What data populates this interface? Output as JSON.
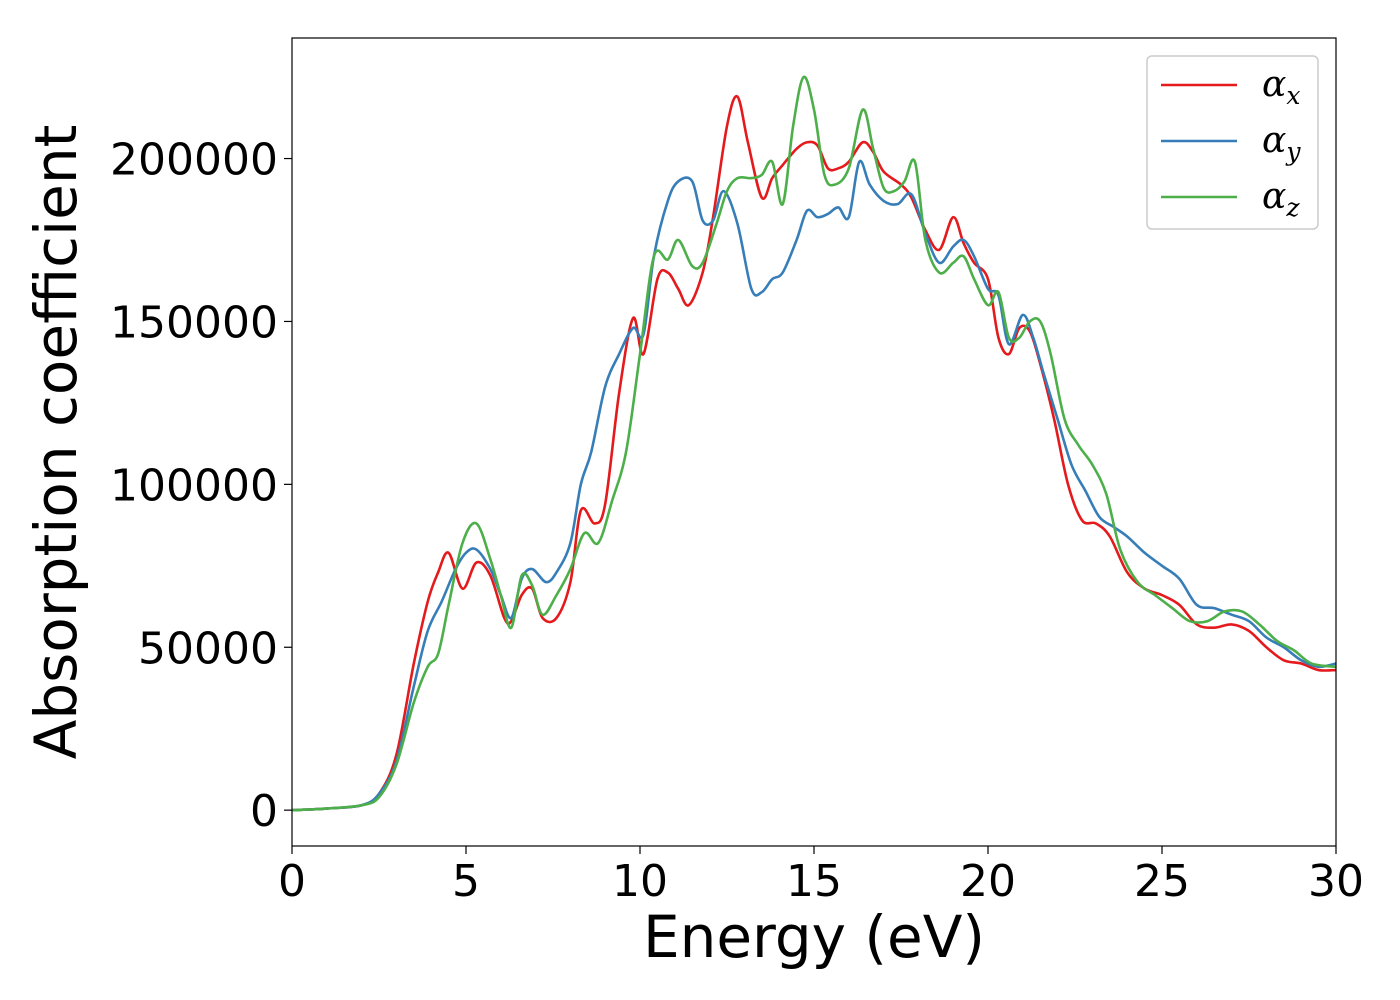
{
  "chart_data": {
    "type": "line",
    "title": "",
    "xlabel": "Energy (eV)",
    "ylabel": "Absorption coefficient",
    "xlim": [
      0,
      30
    ],
    "ylim": [
      -11000,
      237000
    ],
    "xticks": [
      0,
      5,
      10,
      15,
      20,
      25,
      30
    ],
    "xtick_labels": [
      "0",
      "5",
      "10",
      "15",
      "20",
      "25",
      "30"
    ],
    "yticks": [
      0,
      50000,
      100000,
      150000,
      200000
    ],
    "ytick_labels": [
      "0",
      "50000",
      "100000",
      "150000",
      "200000"
    ],
    "grid": false,
    "legend": {
      "placement": "top-right"
    },
    "series": [
      {
        "name": "α_x",
        "symbol": "α",
        "subscript": "x",
        "color": "#e41a1c",
        "x": [
          0,
          1,
          2,
          2.5,
          3,
          3.5,
          3.9,
          4.2,
          4.5,
          4.9,
          5.3,
          5.7,
          6.1,
          6.3,
          6.6,
          6.9,
          7.2,
          7.6,
          8.0,
          8.3,
          8.7,
          9.0,
          9.4,
          9.8,
          10.1,
          10.5,
          10.8,
          11.1,
          11.4,
          11.8,
          12.1,
          12.5,
          12.8,
          13.1,
          13.5,
          13.8,
          14.1,
          14.5,
          14.8,
          15.1,
          15.4,
          15.7,
          16.0,
          16.4,
          16.7,
          17.0,
          17.5,
          17.8,
          18.2,
          18.6,
          19.0,
          19.3,
          19.6,
          20.0,
          20.3,
          20.6,
          20.9,
          21.2,
          21.5,
          21.9,
          22.3,
          22.7,
          23.1,
          23.5,
          24.0,
          24.5,
          25.0,
          25.5,
          26.0,
          26.5,
          27.0,
          27.5,
          28.0,
          28.5,
          29.0,
          29.5,
          30.0
        ],
        "y": [
          0,
          500,
          1500,
          5000,
          17000,
          45000,
          64000,
          73000,
          79000,
          68000,
          76000,
          72000,
          59000,
          58000,
          66000,
          68000,
          59000,
          59000,
          70000,
          92000,
          88000,
          94000,
          128000,
          151000,
          140000,
          163000,
          165000,
          160000,
          155000,
          165000,
          182000,
          210000,
          219000,
          205000,
          188000,
          194000,
          198000,
          203000,
          205000,
          204000,
          197000,
          197000,
          199000,
          205000,
          202000,
          196000,
          192000,
          188000,
          178000,
          172000,
          182000,
          174000,
          168000,
          163000,
          145000,
          140000,
          148000,
          147000,
          137000,
          120000,
          100000,
          89000,
          88000,
          84000,
          73000,
          68000,
          66000,
          63000,
          57000,
          56000,
          57000,
          55000,
          50000,
          46000,
          45000,
          43000,
          43000
        ]
      },
      {
        "name": "α_y",
        "symbol": "α",
        "subscript": "y",
        "color": "#377eb8",
        "x": [
          0,
          1,
          2,
          2.5,
          3,
          3.5,
          3.9,
          4.3,
          4.7,
          5.0,
          5.3,
          5.7,
          6.0,
          6.3,
          6.6,
          6.9,
          7.3,
          7.6,
          8.0,
          8.3,
          8.6,
          9.0,
          9.4,
          9.8,
          10.1,
          10.4,
          10.8,
          11.1,
          11.5,
          11.8,
          12.1,
          12.4,
          12.8,
          13.2,
          13.5,
          13.8,
          14.1,
          14.5,
          14.8,
          15.1,
          15.4,
          15.7,
          16.0,
          16.3,
          16.6,
          17.0,
          17.4,
          17.8,
          18.2,
          18.6,
          19.0,
          19.3,
          19.6,
          20.0,
          20.3,
          20.6,
          21.0,
          21.3,
          21.6,
          22.0,
          22.4,
          22.8,
          23.2,
          23.6,
          24.0,
          24.5,
          25.0,
          25.5,
          26.0,
          26.5,
          27.0,
          27.5,
          28.0,
          28.5,
          29.0,
          29.5,
          30.0
        ],
        "y": [
          0,
          500,
          1500,
          5000,
          15000,
          38000,
          55000,
          64000,
          74000,
          79000,
          80000,
          74000,
          66000,
          59000,
          71000,
          74000,
          70000,
          73000,
          82000,
          100000,
          110000,
          130000,
          140000,
          148000,
          146000,
          170000,
          187000,
          193000,
          193000,
          181000,
          181000,
          190000,
          180000,
          160000,
          159000,
          163000,
          165000,
          175000,
          184000,
          182000,
          183000,
          185000,
          182000,
          199000,
          192000,
          187000,
          186000,
          189000,
          177000,
          168000,
          173000,
          175000,
          170000,
          160000,
          158000,
          143000,
          152000,
          145000,
          134000,
          120000,
          106000,
          98000,
          90000,
          87000,
          84000,
          79000,
          75000,
          71000,
          63000,
          62000,
          60000,
          58000,
          53000,
          50000,
          46000,
          44000,
          45000
        ]
      },
      {
        "name": "α_z",
        "symbol": "α",
        "subscript": "z",
        "color": "#4daf4a",
        "x": [
          0,
          1,
          2,
          2.5,
          3,
          3.5,
          3.9,
          4.2,
          4.5,
          4.9,
          5.3,
          5.7,
          6.0,
          6.3,
          6.6,
          6.9,
          7.2,
          7.6,
          8.0,
          8.4,
          8.8,
          9.2,
          9.6,
          10.0,
          10.4,
          10.8,
          11.1,
          11.5,
          11.8,
          12.2,
          12.5,
          12.8,
          13.2,
          13.5,
          13.8,
          14.1,
          14.4,
          14.7,
          15.0,
          15.3,
          15.6,
          16.0,
          16.4,
          16.7,
          17.0,
          17.3,
          17.6,
          17.9,
          18.2,
          18.6,
          19.0,
          19.3,
          19.6,
          20.0,
          20.3,
          20.6,
          20.9,
          21.2,
          21.5,
          21.8,
          22.2,
          22.6,
          23.0,
          23.4,
          23.8,
          24.3,
          24.8,
          25.3,
          25.8,
          26.3,
          26.8,
          27.3,
          27.8,
          28.3,
          28.8,
          29.3,
          30.0
        ],
        "y": [
          0,
          500,
          1500,
          4000,
          14000,
          33000,
          44000,
          48000,
          63000,
          82000,
          88000,
          77000,
          66000,
          56000,
          72000,
          69000,
          60000,
          66000,
          74000,
          85000,
          82000,
          95000,
          110000,
          140000,
          170000,
          169000,
          175000,
          167000,
          168000,
          180000,
          190000,
          194000,
          194000,
          195000,
          199000,
          186000,
          210000,
          225000,
          215000,
          195000,
          192000,
          197000,
          215000,
          203000,
          191000,
          190000,
          193000,
          199000,
          175000,
          165000,
          168000,
          170000,
          163000,
          155000,
          159000,
          145000,
          145000,
          150000,
          150000,
          140000,
          120000,
          112000,
          106000,
          97000,
          80000,
          70000,
          66000,
          62000,
          58000,
          58000,
          61000,
          61000,
          57000,
          52000,
          49000,
          45000,
          44000
        ]
      }
    ]
  }
}
